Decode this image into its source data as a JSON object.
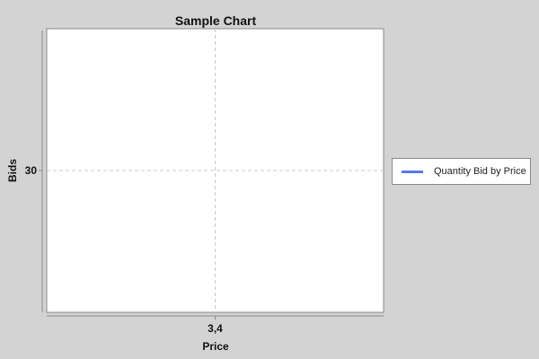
{
  "chart_data": {
    "type": "line",
    "title": "Sample Chart",
    "xlabel": "Price",
    "ylabel": "Bids",
    "x_ticks": [
      "3,4"
    ],
    "y_ticks": [
      "30"
    ],
    "series": [
      {
        "name": "Quantity Bid by Price",
        "color": "#5a78e6",
        "points": [
          {
            "x": "3,4",
            "y": 30
          }
        ]
      }
    ],
    "grid": true,
    "legend_position": "right"
  },
  "colors": {
    "background": "#d3d3d3",
    "plot_background": "#ffffff",
    "gridline": "#c8c8c8",
    "axis": "#8a8a8a"
  }
}
